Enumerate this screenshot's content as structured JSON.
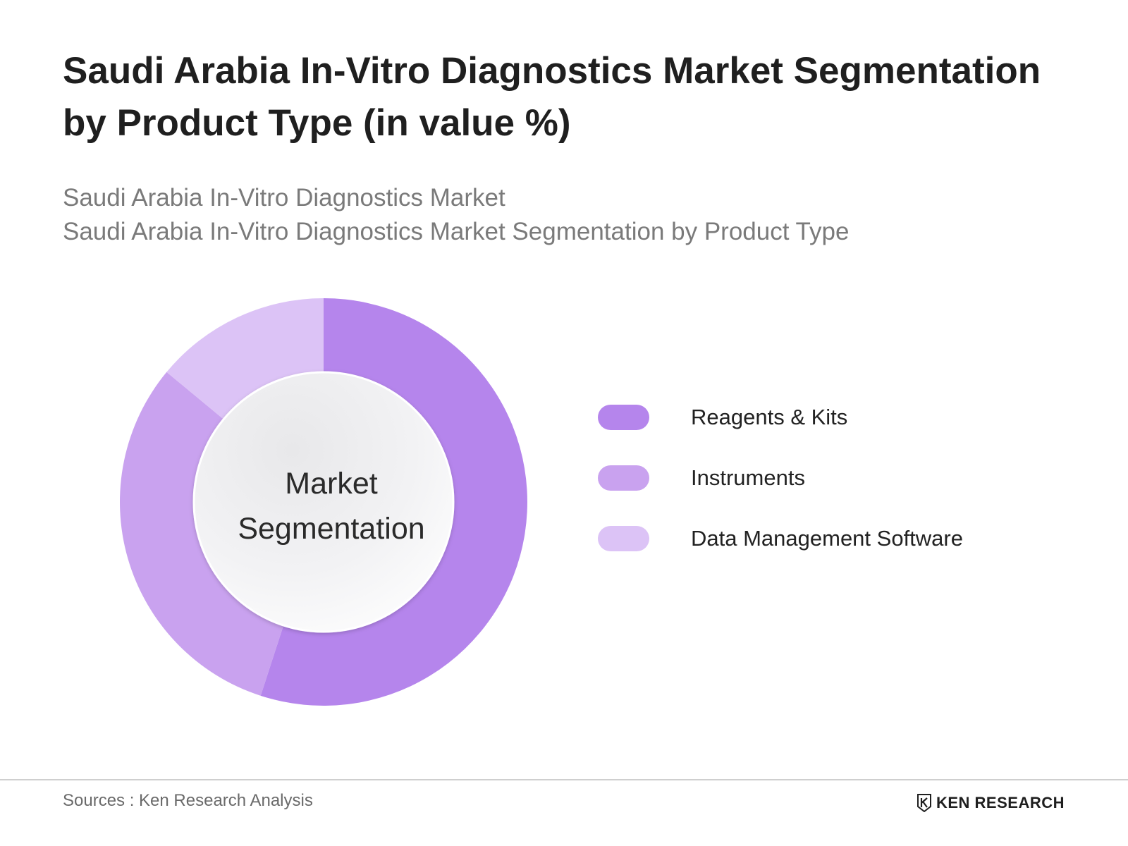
{
  "header": {
    "title": "Saudi Arabia In-Vitro Diagnostics Market Segmentation by Product Type (in value %)",
    "subtitle_line1": "Saudi Arabia In-Vitro Diagnostics Market",
    "subtitle_line2": "Saudi Arabia In-Vitro Diagnostics Market Segmentation by Product Type"
  },
  "chart_data": {
    "type": "pie",
    "variant": "donut",
    "title": "Saudi Arabia In-Vitro Diagnostics Market Segmentation by Product Type (in value %)",
    "center_label_line1": "Market",
    "center_label_line2": "Segmentation",
    "unit": "%",
    "legend_position": "right",
    "slices": [
      {
        "label": "Reagents & Kits",
        "value": 55,
        "color": "#b585ec"
      },
      {
        "label": "Instruments",
        "value": 31,
        "color": "#c9a2ef"
      },
      {
        "label": "Data Management Software",
        "value": 14,
        "color": "#dcc3f6"
      }
    ]
  },
  "footer": {
    "sources": "Sources : Ken Research Analysis",
    "brand": "KEN RESEARCH"
  }
}
